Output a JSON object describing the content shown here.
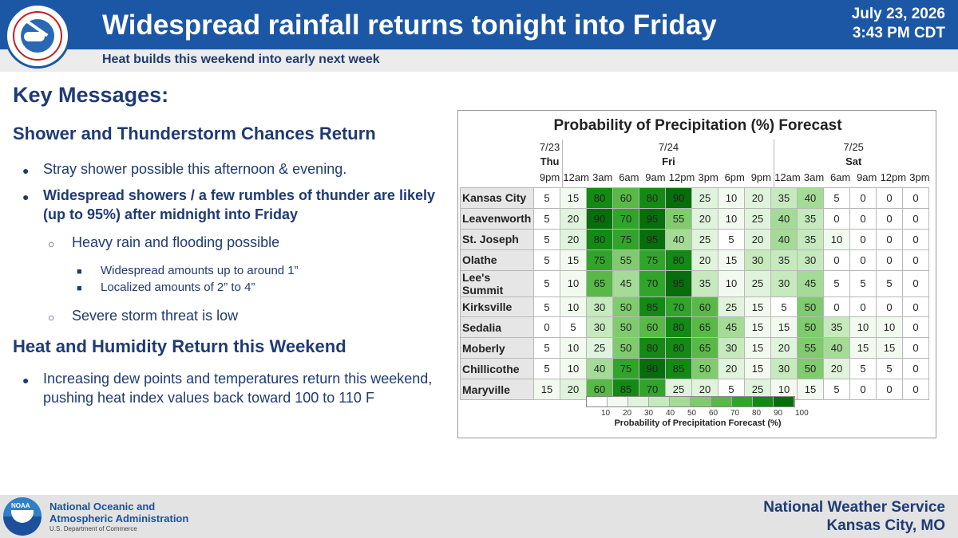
{
  "header": {
    "title": "Widespread rainfall returns tonight into Friday",
    "subtitle": "Heat builds this weekend into early next week",
    "date": "July 23, 2026",
    "time": "3:43 PM CDT",
    "logo_icon": "nws-logo-icon",
    "colors": {
      "banner": "#1c57a5",
      "text": "#1f3b73"
    }
  },
  "key_messages": {
    "heading": "Key Messages:",
    "section1": "Shower and Thunderstorm Chances Return",
    "b1": "Stray shower possible this afternoon & evening.",
    "b2": "Widespread showers / a few rumbles of thunder are likely (up to 95%) after midnight into Friday",
    "b3": "Heavy rain and flooding possible",
    "b4": "Widespread amounts up to around 1”",
    "b5": "Localized amounts of 2” to 4”",
    "b6": "Severe storm threat is low",
    "section2": "Heat and Humidity Return this Weekend",
    "b7": "Increasing dew points and temperatures return this weekend, pushing heat index values back toward 100 to 110 F"
  },
  "chart_data": {
    "type": "heatmap",
    "title": "Probability of Precipitation (%) Forecast",
    "dates": [
      "7/23",
      "7/24",
      "7/25"
    ],
    "days": [
      "Thu",
      "Fri",
      "Sat"
    ],
    "times": [
      "9pm",
      "12am",
      "3am",
      "6am",
      "9am",
      "12pm",
      "3pm",
      "6pm",
      "9pm",
      "12am",
      "3am",
      "6am",
      "9am",
      "12pm",
      "3pm"
    ],
    "rows": [
      {
        "city": "Kansas City",
        "values": [
          5,
          15,
          80,
          60,
          80,
          90,
          25,
          10,
          20,
          35,
          40,
          5,
          0,
          0,
          0
        ]
      },
      {
        "city": "Leavenworth",
        "values": [
          5,
          20,
          90,
          70,
          95,
          55,
          20,
          10,
          25,
          40,
          35,
          0,
          0,
          0,
          0
        ]
      },
      {
        "city": "St. Joseph",
        "values": [
          5,
          20,
          80,
          75,
          95,
          40,
          25,
          5,
          20,
          40,
          35,
          10,
          0,
          0,
          0
        ]
      },
      {
        "city": "Olathe",
        "values": [
          5,
          15,
          75,
          55,
          75,
          80,
          20,
          15,
          30,
          35,
          30,
          0,
          0,
          0,
          0
        ]
      },
      {
        "city": "Lee's Summit",
        "values": [
          5,
          10,
          65,
          45,
          70,
          95,
          35,
          10,
          25,
          30,
          45,
          5,
          5,
          5,
          0
        ]
      },
      {
        "city": "Kirksville",
        "values": [
          5,
          10,
          30,
          50,
          85,
          70,
          60,
          25,
          15,
          5,
          50,
          0,
          0,
          0,
          0
        ]
      },
      {
        "city": "Sedalia",
        "values": [
          0,
          5,
          30,
          50,
          60,
          80,
          65,
          45,
          15,
          15,
          50,
          35,
          10,
          10,
          0
        ]
      },
      {
        "city": "Moberly",
        "values": [
          5,
          10,
          25,
          50,
          80,
          80,
          65,
          30,
          15,
          20,
          55,
          40,
          15,
          15,
          0
        ]
      },
      {
        "city": "Chillicothe",
        "values": [
          5,
          10,
          40,
          75,
          90,
          85,
          50,
          20,
          15,
          30,
          50,
          20,
          5,
          5,
          0
        ]
      },
      {
        "city": "Maryville",
        "values": [
          15,
          20,
          60,
          85,
          70,
          25,
          20,
          5,
          25,
          10,
          15,
          5,
          0,
          0,
          0
        ]
      }
    ],
    "colorbar_ticks": [
      "10",
      "20",
      "30",
      "40",
      "50",
      "60",
      "70",
      "80",
      "90",
      "100"
    ],
    "colorbar_label": "Probability of Precipitation Forecast (%)",
    "colors": [
      "#ffffff",
      "#f2faf0",
      "#e0f3dc",
      "#c6e9bd",
      "#a4db97",
      "#7fcb6e",
      "#58b947",
      "#30a52a",
      "#128a14",
      "#076e0c"
    ]
  },
  "footer": {
    "noaa_line1": "National Oceanic and",
    "noaa_line2": "Atmospheric Administration",
    "noaa_dept": "U.S. Department of Commerce",
    "noaa_badge": "NOAA",
    "office_line1": "National Weather Service",
    "office_line2": "Kansas City, MO"
  }
}
